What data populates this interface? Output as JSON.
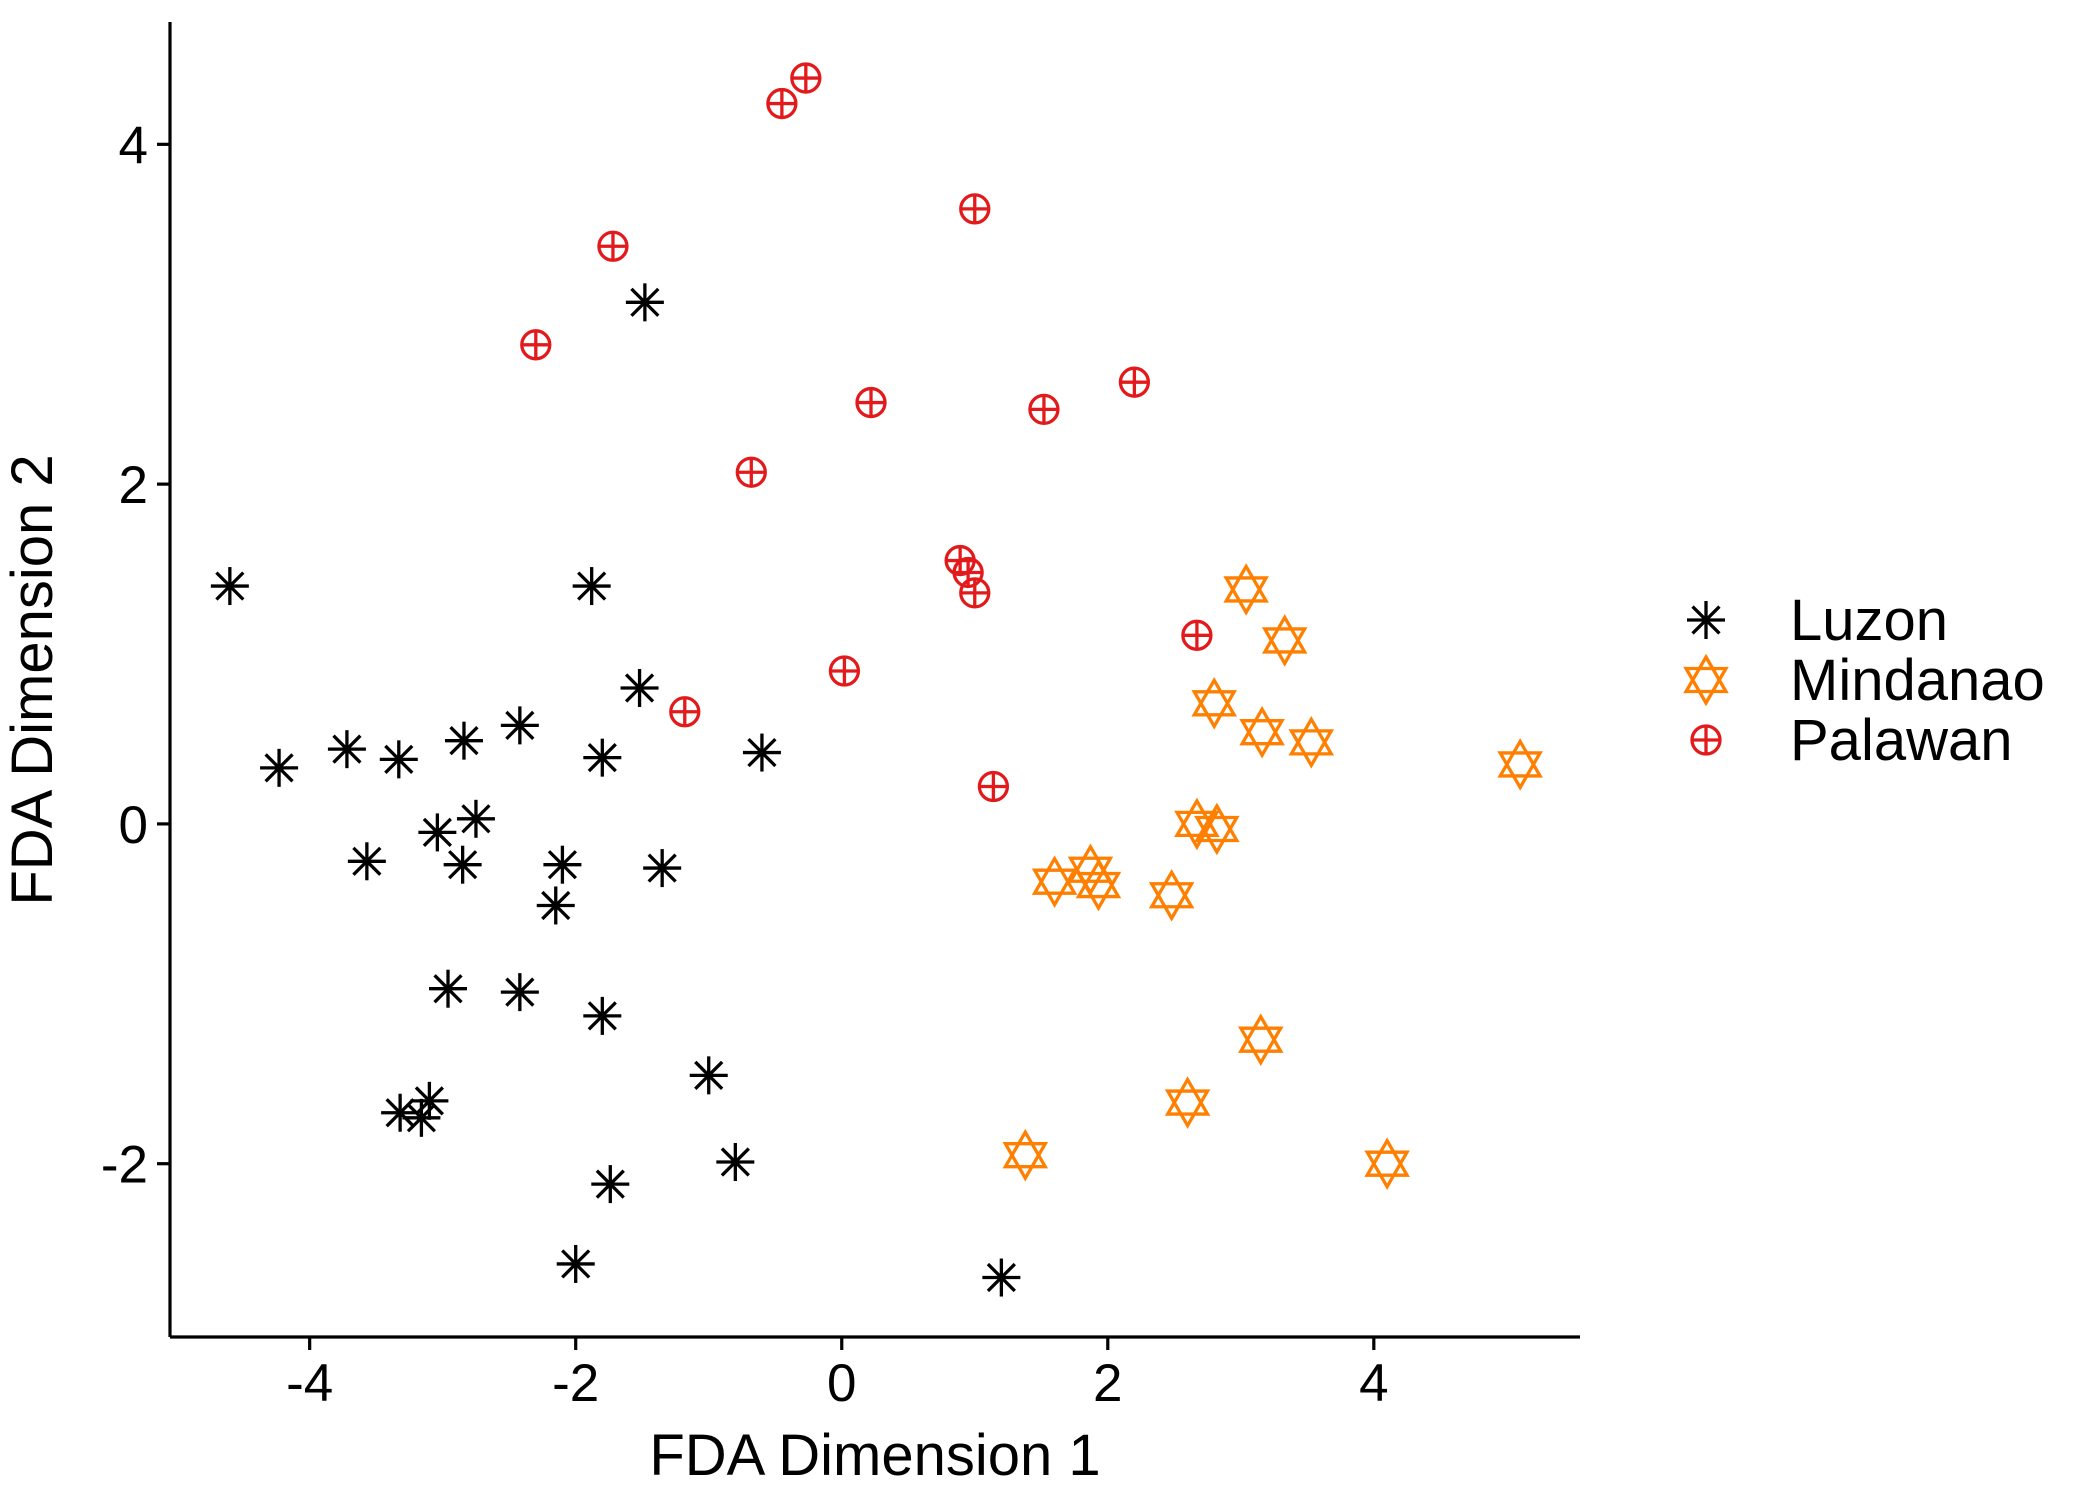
{
  "chart_data": {
    "type": "scatter",
    "title": "",
    "xlabel": "FDA Dimension 1",
    "ylabel": "FDA Dimension 2",
    "xlim": [
      -5.05,
      5.55
    ],
    "ylim": [
      -3.02,
      4.72
    ],
    "xticks": [
      -4,
      -2,
      0,
      2,
      4
    ],
    "yticks": [
      -2,
      0,
      2,
      4
    ],
    "xtick_labels": [
      "-4",
      "-2",
      "0",
      "2",
      "4"
    ],
    "ytick_labels": [
      "-2",
      "0",
      "2",
      "4"
    ],
    "grid": false,
    "legend_position": "right",
    "series": [
      {
        "name": "Luzon",
        "marker": "asterisk",
        "color": "#000000",
        "points": [
          {
            "x": -1.48,
            "y": 3.07
          },
          {
            "x": -4.6,
            "y": 1.4
          },
          {
            "x": -1.88,
            "y": 1.4
          },
          {
            "x": -1.52,
            "y": 0.8
          },
          {
            "x": -4.23,
            "y": 0.33
          },
          {
            "x": -3.72,
            "y": 0.44
          },
          {
            "x": -3.33,
            "y": 0.38
          },
          {
            "x": -2.84,
            "y": 0.49
          },
          {
            "x": -2.42,
            "y": 0.58
          },
          {
            "x": -1.8,
            "y": 0.39
          },
          {
            "x": -0.6,
            "y": 0.42
          },
          {
            "x": -2.75,
            "y": 0.03
          },
          {
            "x": -3.04,
            "y": -0.05
          },
          {
            "x": -3.57,
            "y": -0.22
          },
          {
            "x": -2.85,
            "y": -0.24
          },
          {
            "x": -2.1,
            "y": -0.24
          },
          {
            "x": -1.35,
            "y": -0.26
          },
          {
            "x": -2.15,
            "y": -0.48
          },
          {
            "x": -2.96,
            "y": -0.97
          },
          {
            "x": -2.42,
            "y": -0.99
          },
          {
            "x": -1.8,
            "y": -1.13
          },
          {
            "x": -1.0,
            "y": -1.48
          },
          {
            "x": -3.32,
            "y": -1.7
          },
          {
            "x": -3.1,
            "y": -1.63
          },
          {
            "x": -3.16,
            "y": -1.73
          },
          {
            "x": -0.8,
            "y": -1.99
          },
          {
            "x": -1.74,
            "y": -2.12
          },
          {
            "x": -2.0,
            "y": -2.59
          },
          {
            "x": 1.2,
            "y": -2.67
          }
        ]
      },
      {
        "name": "Mindanao",
        "marker": "star-of-david",
        "color": "#ff7f00",
        "points": [
          {
            "x": 3.04,
            "y": 1.38
          },
          {
            "x": 3.33,
            "y": 1.08
          },
          {
            "x": 2.8,
            "y": 0.71
          },
          {
            "x": 3.16,
            "y": 0.54
          },
          {
            "x": 3.53,
            "y": 0.48
          },
          {
            "x": 5.1,
            "y": 0.35
          },
          {
            "x": 2.67,
            "y": 0.0
          },
          {
            "x": 2.82,
            "y": -0.03
          },
          {
            "x": 1.6,
            "y": -0.34
          },
          {
            "x": 1.87,
            "y": -0.27
          },
          {
            "x": 1.93,
            "y": -0.36
          },
          {
            "x": 2.48,
            "y": -0.42
          },
          {
            "x": 3.15,
            "y": -1.27
          },
          {
            "x": 2.6,
            "y": -1.64
          },
          {
            "x": 1.38,
            "y": -1.95
          },
          {
            "x": 4.1,
            "y": -2.0
          }
        ]
      },
      {
        "name": "Palawan",
        "marker": "circle-plus",
        "color": "#e31a1c",
        "points": [
          {
            "x": -0.27,
            "y": 4.39
          },
          {
            "x": -0.45,
            "y": 4.24
          },
          {
            "x": 1.0,
            "y": 3.62
          },
          {
            "x": -1.72,
            "y": 3.4
          },
          {
            "x": -2.3,
            "y": 2.82
          },
          {
            "x": 0.22,
            "y": 2.48
          },
          {
            "x": 2.2,
            "y": 2.6
          },
          {
            "x": 1.52,
            "y": 2.44
          },
          {
            "x": -0.68,
            "y": 2.07
          },
          {
            "x": 0.89,
            "y": 1.55
          },
          {
            "x": 0.95,
            "y": 1.48
          },
          {
            "x": 1.0,
            "y": 1.36
          },
          {
            "x": 2.67,
            "y": 1.11
          },
          {
            "x": 0.02,
            "y": 0.9
          },
          {
            "x": -1.18,
            "y": 0.66
          },
          {
            "x": 1.14,
            "y": 0.22
          }
        ]
      }
    ]
  }
}
